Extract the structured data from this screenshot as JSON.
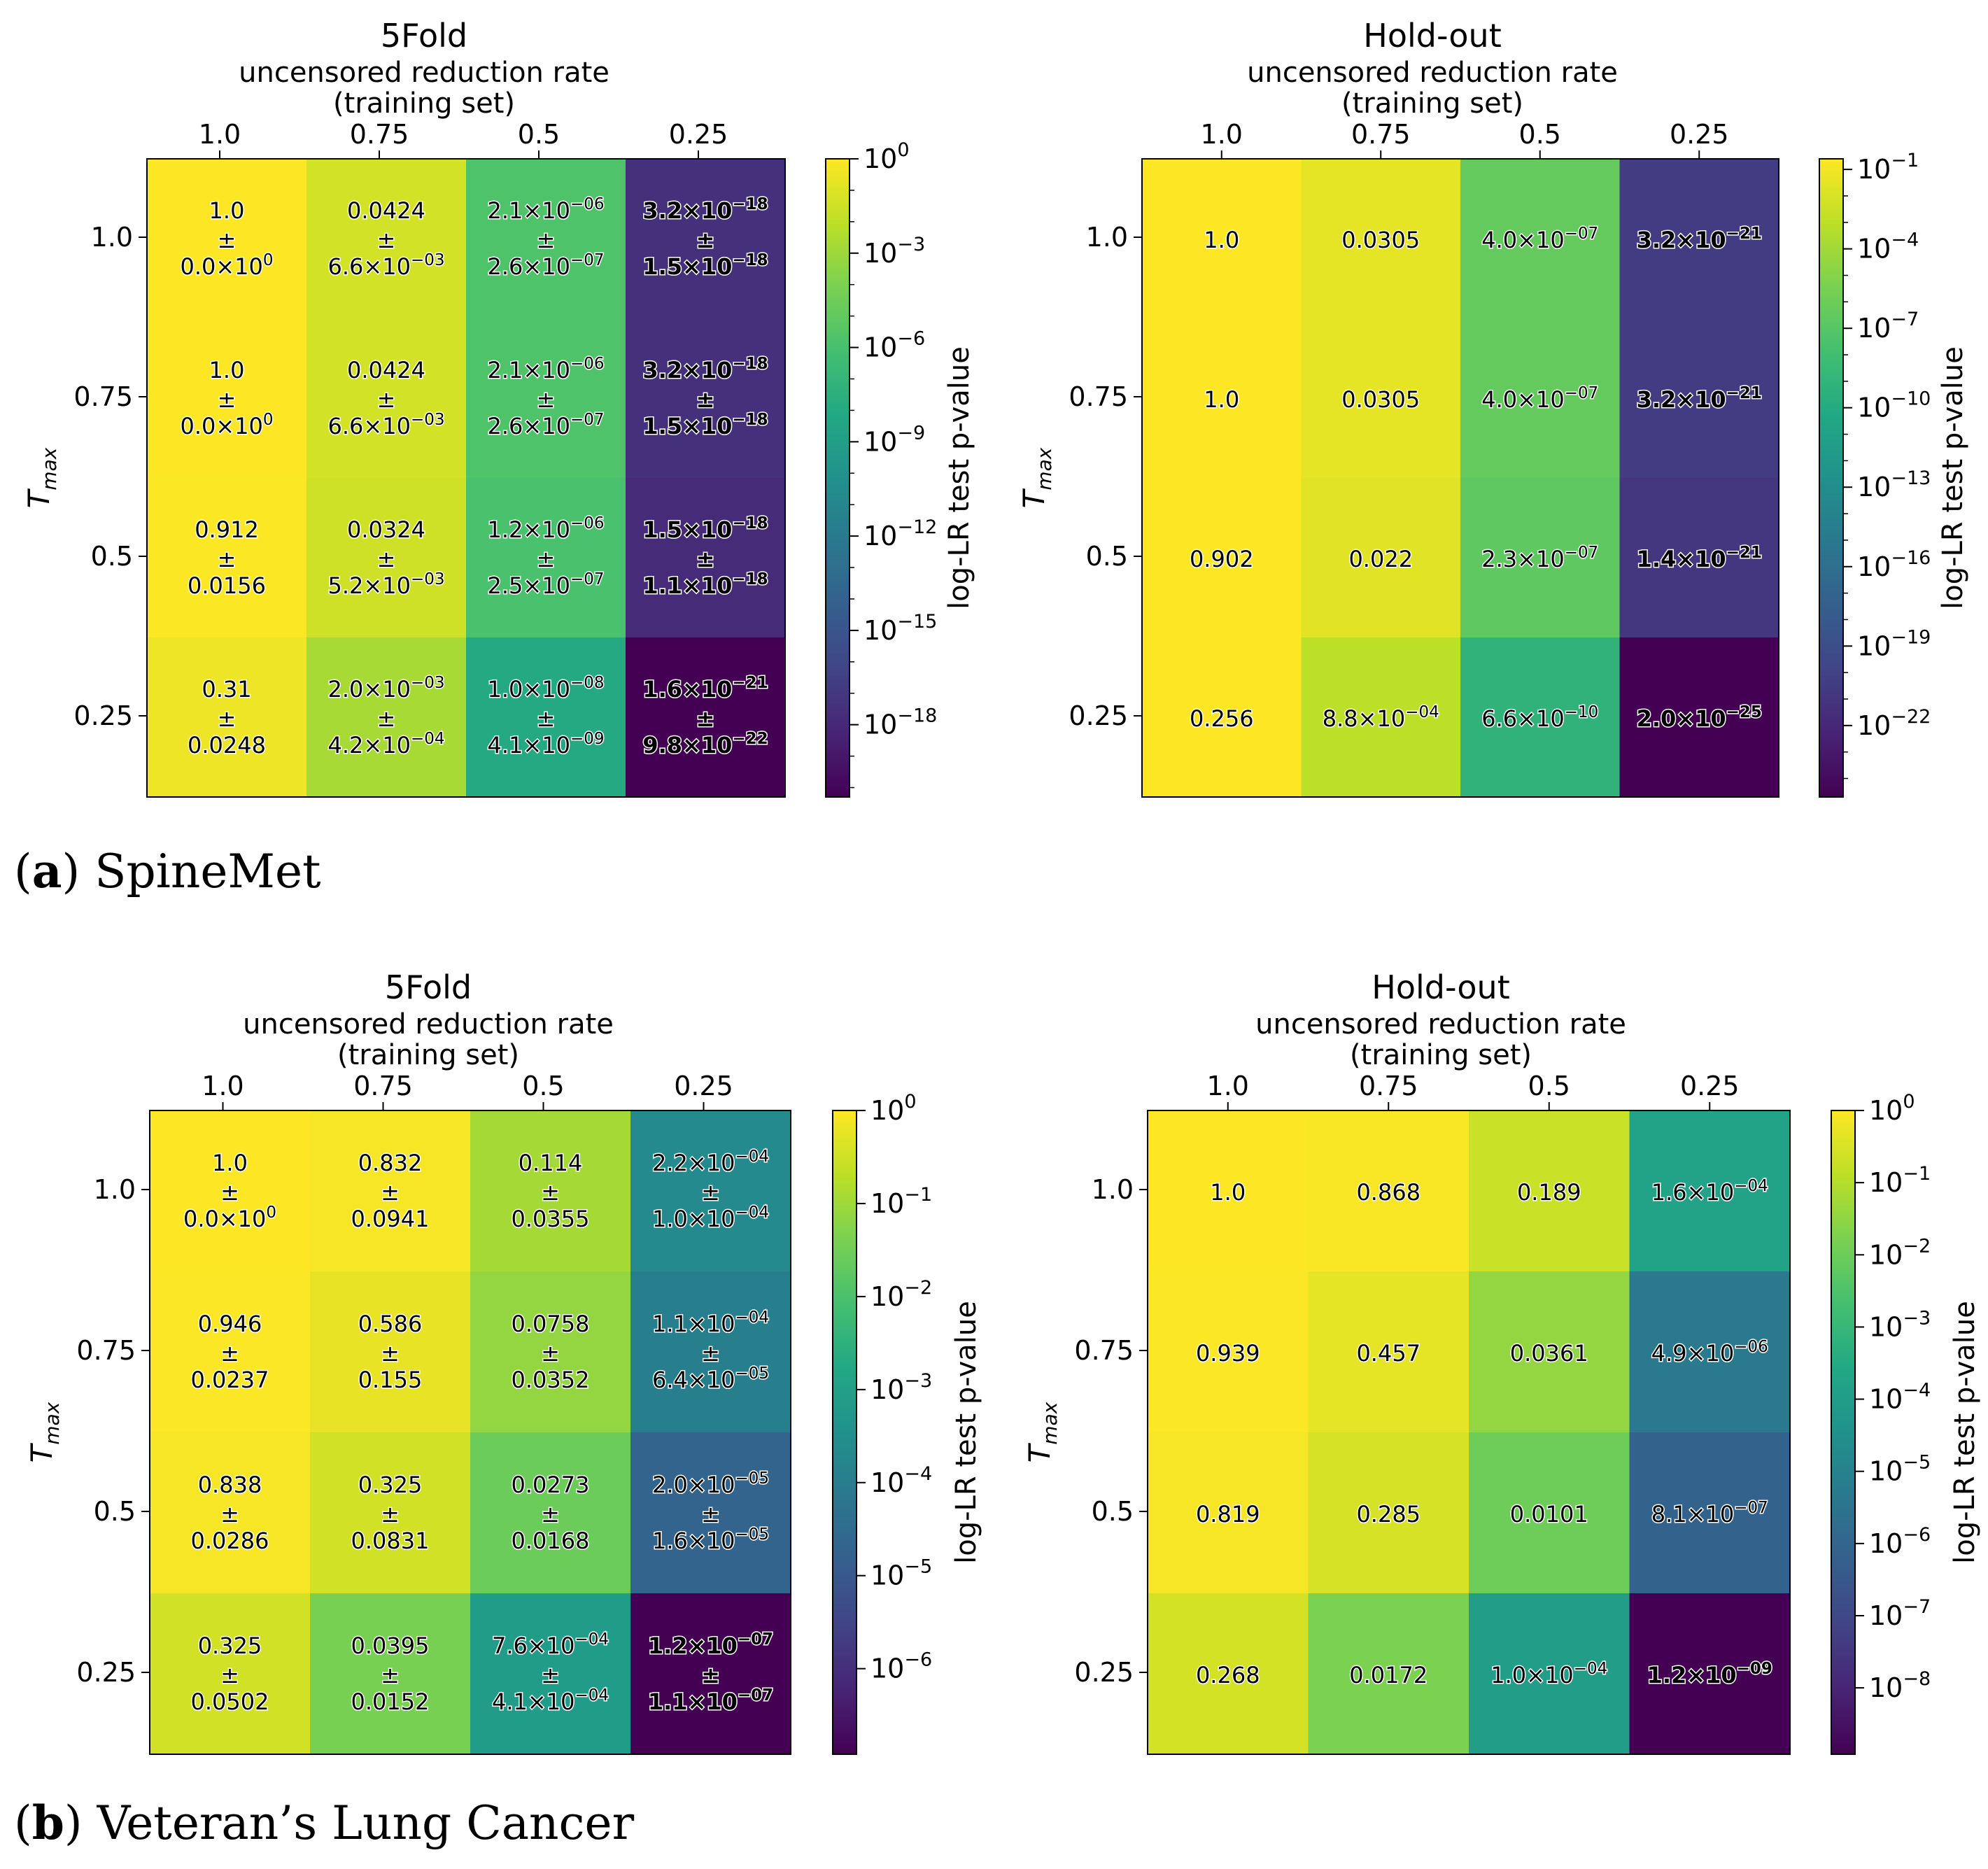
{
  "figure": {
    "captions": [
      {
        "label": "a",
        "text": "SpineMet"
      },
      {
        "label": "b",
        "text": "Veteran’s Lung Cancer"
      }
    ]
  },
  "chart_data": [
    {
      "type": "heatmap",
      "panel": "a",
      "title": "5Fold",
      "xlabel": "uncensored reduction rate\n(training set)",
      "ylabel": "T_max",
      "x_ticks": [
        "1.0",
        "0.75",
        "0.5",
        "0.25"
      ],
      "y_ticks": [
        "1.0",
        "0.75",
        "0.5",
        "0.25"
      ],
      "colorbar_label": "log-LR test p-value",
      "colorbar_exponents": [
        0,
        -3,
        -6,
        -9,
        -12,
        -15,
        -18
      ],
      "colorscale": "viridis",
      "log_range": [
        -20.3,
        0
      ],
      "values": [
        [
          1.0,
          0.0424,
          2.1e-06,
          3.2e-18
        ],
        [
          1.0,
          0.0424,
          2.1e-06,
          3.2e-18
        ],
        [
          0.912,
          0.0324,
          1.2e-06,
          1.5e-18
        ],
        [
          0.31,
          0.002,
          1e-08,
          1.6e-21
        ]
      ],
      "cell_labels": [
        [
          [
            "1.0",
            "±",
            [
              "0.0",
              "0"
            ]
          ],
          [
            "0.0424",
            "±",
            [
              "6.6",
              "−03"
            ]
          ],
          [
            [
              "2.1",
              "−06"
            ],
            "±",
            [
              "2.6",
              "−07"
            ]
          ],
          [
            [
              "3.2",
              "−18"
            ],
            "±",
            [
              "1.5",
              "−18"
            ]
          ]
        ],
        [
          [
            "1.0",
            "±",
            [
              "0.0",
              "0"
            ]
          ],
          [
            "0.0424",
            "±",
            [
              "6.6",
              "−03"
            ]
          ],
          [
            [
              "2.1",
              "−06"
            ],
            "±",
            [
              "2.6",
              "−07"
            ]
          ],
          [
            [
              "3.2",
              "−18"
            ],
            "±",
            [
              "1.5",
              "−18"
            ]
          ]
        ],
        [
          [
            "0.912",
            "±",
            "0.0156"
          ],
          [
            "0.0324",
            "±",
            [
              "5.2",
              "−03"
            ]
          ],
          [
            [
              "1.2",
              "−06"
            ],
            "±",
            [
              "2.5",
              "−07"
            ]
          ],
          [
            [
              "1.5",
              "−18"
            ],
            "±",
            [
              "1.1",
              "−18"
            ]
          ]
        ],
        [
          [
            "0.31",
            "±",
            "0.0248"
          ],
          [
            [
              "2.0",
              "−03"
            ],
            "±",
            [
              "4.2",
              "−04"
            ]
          ],
          [
            [
              "1.0",
              "−08"
            ],
            "±",
            [
              "4.1",
              "−09"
            ]
          ],
          [
            [
              "1.6",
              "−21"
            ],
            "±",
            [
              "9.8",
              "−22"
            ]
          ]
        ]
      ]
    },
    {
      "type": "heatmap",
      "panel": "a",
      "title": "Hold-out",
      "xlabel": "uncensored reduction rate\n(training set)",
      "ylabel": "T_max",
      "x_ticks": [
        "1.0",
        "0.75",
        "0.5",
        "0.25"
      ],
      "y_ticks": [
        "1.0",
        "0.75",
        "0.5",
        "0.25"
      ],
      "colorbar_label": "log-LR test p-value",
      "colorbar_exponents": [
        -1,
        -4,
        -7,
        -10,
        -13,
        -16,
        -19,
        -22
      ],
      "colorscale": "viridis",
      "log_range": [
        -24.7,
        -0.6
      ],
      "values": [
        [
          1.0,
          0.0305,
          4e-07,
          3.2e-21
        ],
        [
          1.0,
          0.0305,
          4e-07,
          3.2e-21
        ],
        [
          0.902,
          0.022,
          2.3e-07,
          1.4e-21
        ],
        [
          0.256,
          0.00088,
          6.6e-10,
          2e-25
        ]
      ],
      "cell_labels": [
        [
          [
            "1.0"
          ],
          [
            "0.0305"
          ],
          [
            [
              "4.0",
              "−07"
            ]
          ],
          [
            [
              "3.2",
              "−21"
            ]
          ]
        ],
        [
          [
            "1.0"
          ],
          [
            "0.0305"
          ],
          [
            [
              "4.0",
              "−07"
            ]
          ],
          [
            [
              "3.2",
              "−21"
            ]
          ]
        ],
        [
          [
            "0.902"
          ],
          [
            "0.022"
          ],
          [
            [
              "2.3",
              "−07"
            ]
          ],
          [
            [
              "1.4",
              "−21"
            ]
          ]
        ],
        [
          [
            "0.256"
          ],
          [
            [
              "8.8",
              "−04"
            ]
          ],
          [
            [
              "6.6",
              "−10"
            ]
          ],
          [
            [
              "2.0",
              "−25"
            ]
          ]
        ]
      ]
    },
    {
      "type": "heatmap",
      "panel": "b",
      "title": "5Fold",
      "xlabel": "uncensored reduction rate\n(training set)",
      "ylabel": "T_max",
      "x_ticks": [
        "1.0",
        "0.75",
        "0.5",
        "0.25"
      ],
      "y_ticks": [
        "1.0",
        "0.75",
        "0.5",
        "0.25"
      ],
      "colorbar_label": "log-LR test p-value",
      "colorbar_exponents": [
        0,
        -1,
        -2,
        -3,
        -4,
        -5,
        -6
      ],
      "colorscale": "viridis",
      "log_range": [
        -6.92,
        0
      ],
      "values": [
        [
          1.0,
          0.832,
          0.114,
          0.00022
        ],
        [
          0.946,
          0.586,
          0.0758,
          0.00011
        ],
        [
          0.838,
          0.325,
          0.0273,
          2e-05
        ],
        [
          0.325,
          0.0395,
          0.00076,
          1.2e-07
        ]
      ],
      "cell_labels": [
        [
          [
            "1.0",
            "±",
            [
              "0.0",
              "0"
            ]
          ],
          [
            "0.832",
            "±",
            "0.0941"
          ],
          [
            "0.114",
            "±",
            "0.0355"
          ],
          [
            [
              "2.2",
              "−04"
            ],
            "±",
            [
              "1.0",
              "−04"
            ]
          ]
        ],
        [
          [
            "0.946",
            "±",
            "0.0237"
          ],
          [
            "0.586",
            "±",
            "0.155"
          ],
          [
            "0.0758",
            "±",
            "0.0352"
          ],
          [
            [
              "1.1",
              "−04"
            ],
            "±",
            [
              "6.4",
              "−05"
            ]
          ]
        ],
        [
          [
            "0.838",
            "±",
            "0.0286"
          ],
          [
            "0.325",
            "±",
            "0.0831"
          ],
          [
            "0.0273",
            "±",
            "0.0168"
          ],
          [
            [
              "2.0",
              "−05"
            ],
            "±",
            [
              "1.6",
              "−05"
            ]
          ]
        ],
        [
          [
            "0.325",
            "±",
            "0.0502"
          ],
          [
            "0.0395",
            "±",
            "0.0152"
          ],
          [
            [
              "7.6",
              "−04"
            ],
            "±",
            [
              "4.1",
              "−04"
            ]
          ],
          [
            [
              "1.2",
              "−07"
            ],
            "±",
            [
              "1.1",
              "−07"
            ]
          ]
        ]
      ]
    },
    {
      "type": "heatmap",
      "panel": "b",
      "title": "Hold-out",
      "xlabel": "uncensored reduction rate\n(training set)",
      "ylabel": "T_max",
      "x_ticks": [
        "1.0",
        "0.75",
        "0.5",
        "0.25"
      ],
      "y_ticks": [
        "1.0",
        "0.75",
        "0.5",
        "0.25"
      ],
      "colorbar_label": "log-LR test p-value",
      "colorbar_exponents": [
        0,
        -1,
        -2,
        -3,
        -4,
        -5,
        -6,
        -7,
        -8
      ],
      "colorscale": "viridis",
      "log_range": [
        -8.92,
        0
      ],
      "values": [
        [
          1.0,
          0.868,
          0.189,
          0.00016
        ],
        [
          0.939,
          0.457,
          0.0361,
          4.9e-06
        ],
        [
          0.819,
          0.285,
          0.0101,
          8.1e-07
        ],
        [
          0.268,
          0.0172,
          0.0001,
          1.2e-09
        ]
      ],
      "cell_labels": [
        [
          [
            "1.0"
          ],
          [
            "0.868"
          ],
          [
            "0.189"
          ],
          [
            [
              "1.6",
              "−04"
            ]
          ]
        ],
        [
          [
            "0.939"
          ],
          [
            "0.457"
          ],
          [
            "0.0361"
          ],
          [
            [
              "4.9",
              "−06"
            ]
          ]
        ],
        [
          [
            "0.819"
          ],
          [
            "0.285"
          ],
          [
            "0.0101"
          ],
          [
            [
              "8.1",
              "−07"
            ]
          ]
        ],
        [
          [
            "0.268"
          ],
          [
            "0.0172"
          ],
          [
            [
              "1.0",
              "−04"
            ]
          ],
          [
            [
              "1.2",
              "−09"
            ]
          ]
        ]
      ]
    }
  ]
}
